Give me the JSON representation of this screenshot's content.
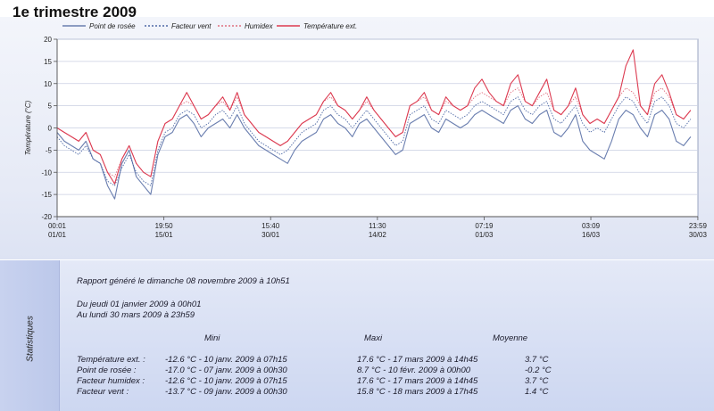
{
  "page": {
    "title": "1e trimestre 2009"
  },
  "colors": {
    "dew_point": "#6a7eaf",
    "wind_chill": "#4f6aa6",
    "humidex": "#e07080",
    "temperature": "#dc3a50",
    "plot_bg": "#ffffff",
    "panel_bg": "#e8ecf8"
  },
  "chart_data": {
    "type": "line",
    "title": "",
    "xlabel": "",
    "ylabel": "Température (°C)",
    "ylim": [
      -20,
      20
    ],
    "yticks": [
      -20,
      -15,
      -10,
      -5,
      0,
      5,
      10,
      15,
      20
    ],
    "grid": true,
    "legend_position": "top",
    "x_ticks": [
      {
        "time": "00:01",
        "date": "01/01",
        "day": 0.0
      },
      {
        "time": "19:50",
        "date": "15/01",
        "day": 14.83
      },
      {
        "time": "15:40",
        "date": "30/01",
        "day": 29.65
      },
      {
        "time": "11:30",
        "date": "14/02",
        "day": 44.48
      },
      {
        "time": "07:19",
        "date": "01/03",
        "day": 59.3
      },
      {
        "time": "03:09",
        "date": "16/03",
        "day": 74.13
      },
      {
        "time": "23:59",
        "date": "30/03",
        "day": 88.99
      }
    ],
    "x_range_days": [
      0,
      89
    ],
    "sample_step_days": 1,
    "series": [
      {
        "name": "Point de rosée",
        "style": "solid",
        "values": [
          -1,
          -3,
          -4,
          -5,
          -3,
          -7,
          -8,
          -13,
          -16,
          -8,
          -5,
          -11,
          -13,
          -15,
          -6,
          -2,
          -1,
          2,
          3,
          1,
          -2,
          0,
          1,
          2,
          0,
          3,
          0,
          -2,
          -4,
          -5,
          -6,
          -7,
          -8,
          -5,
          -3,
          -2,
          -1,
          2,
          3,
          1,
          0,
          -2,
          1,
          2,
          0,
          -2,
          -4,
          -6,
          -5,
          1,
          2,
          3,
          0,
          -1,
          2,
          1,
          0,
          1,
          3,
          4,
          3,
          2,
          1,
          4,
          5,
          2,
          1,
          3,
          4,
          -1,
          -2,
          0,
          3,
          -3,
          -5,
          -6,
          -7,
          -3,
          2,
          4,
          3,
          0,
          -2,
          3,
          4,
          2,
          -3,
          -4,
          -2
        ]
      },
      {
        "name": "Facteur vent",
        "style": "dotted",
        "values": [
          -2,
          -4,
          -5,
          -6,
          -4,
          -7,
          -8,
          -12,
          -13,
          -9,
          -6,
          -10,
          -12,
          -13,
          -5,
          -1,
          0,
          3,
          4,
          3,
          0,
          1,
          3,
          4,
          2,
          5,
          1,
          -1,
          -3,
          -4,
          -5,
          -6,
          -5,
          -3,
          -1,
          0,
          1,
          4,
          5,
          3,
          2,
          0,
          2,
          4,
          2,
          0,
          -2,
          -4,
          -3,
          3,
          4,
          5,
          2,
          1,
          4,
          3,
          2,
          3,
          5,
          6,
          5,
          4,
          3,
          6,
          7,
          4,
          3,
          5,
          6,
          2,
          1,
          3,
          5,
          1,
          -1,
          0,
          -1,
          2,
          5,
          7,
          6,
          3,
          1,
          6,
          7,
          5,
          1,
          0,
          2
        ]
      },
      {
        "name": "Humidex",
        "style": "dotted",
        "values": [
          0,
          -1,
          -2,
          -3,
          -1,
          -5,
          -6,
          -10,
          -11,
          -7,
          -4,
          -8,
          -10,
          -11,
          -3,
          1,
          2,
          5,
          6,
          5,
          2,
          3,
          5,
          6,
          4,
          7,
          3,
          1,
          -1,
          -2,
          -3,
          -4,
          -3,
          -1,
          1,
          2,
          3,
          6,
          7,
          5,
          4,
          2,
          4,
          6,
          4,
          2,
          0,
          -2,
          -1,
          5,
          6,
          7,
          4,
          3,
          6,
          5,
          4,
          5,
          7,
          8,
          7,
          6,
          5,
          8,
          9,
          6,
          5,
          7,
          8,
          4,
          3,
          5,
          7,
          3,
          1,
          2,
          1,
          4,
          7,
          9,
          8,
          5,
          3,
          8,
          9,
          7,
          3,
          2,
          4
        ]
      },
      {
        "name": "Température ext.",
        "style": "solid",
        "values": [
          0,
          -1,
          -2,
          -3,
          -1,
          -5,
          -6,
          -10,
          -12.6,
          -7,
          -4,
          -8,
          -10,
          -11,
          -3,
          1,
          2,
          5,
          8,
          5,
          2,
          3,
          5,
          7,
          4,
          8,
          3,
          1,
          -1,
          -2,
          -3,
          -4,
          -3,
          -1,
          1,
          2,
          3,
          6,
          8,
          5,
          4,
          2,
          4,
          7,
          4,
          2,
          0,
          -2,
          -1,
          5,
          6,
          8,
          4,
          3,
          7,
          5,
          4,
          5,
          9,
          11,
          8,
          6,
          5,
          10,
          12,
          6,
          5,
          8,
          11,
          4,
          3,
          5,
          9,
          3,
          1,
          2,
          1,
          4,
          7,
          14,
          17.6,
          5,
          3,
          10,
          12,
          8,
          3,
          2,
          4
        ]
      }
    ]
  },
  "legend": {
    "dew_point": "Point de rosée",
    "wind_chill": "Facteur vent",
    "humidex": "Humidex",
    "temperature": "Température ext."
  },
  "stats": {
    "side_label": "Statistiques",
    "report_line": "Rapport généré le dimanche 08 novembre 2009 à 10h51",
    "period_from": "Du jeudi 01 janvier 2009 à 00h01",
    "period_to": "Au lundi 30 mars 2009 à 23h59",
    "headers": {
      "min": "Mini",
      "max": "Maxi",
      "avg": "Moyenne"
    },
    "rows": [
      {
        "label": "Température ext. :",
        "min": "-12.6 °C - 10 janv. 2009 à 07h15",
        "max": "17.6 °C - 17 mars 2009 à 14h45",
        "avg": "3.7 °C"
      },
      {
        "label": "Point de rosée :",
        "min": "-17.0 °C - 07 janv. 2009 à 00h30",
        "max": "8.7 °C - 10 févr. 2009 à 00h00",
        "avg": "-0.2 °C"
      },
      {
        "label": "Facteur humidex :",
        "min": "-12.6 °C - 10 janv. 2009 à 07h15",
        "max": "17.6 °C - 17 mars 2009 à 14h45",
        "avg": "3.7 °C"
      },
      {
        "label": "Facteur vent :",
        "min": "-13.7 °C - 09 janv. 2009 à 00h30",
        "max": "15.8 °C - 18 mars 2009 à 17h45",
        "avg": "1.4 °C"
      }
    ]
  }
}
